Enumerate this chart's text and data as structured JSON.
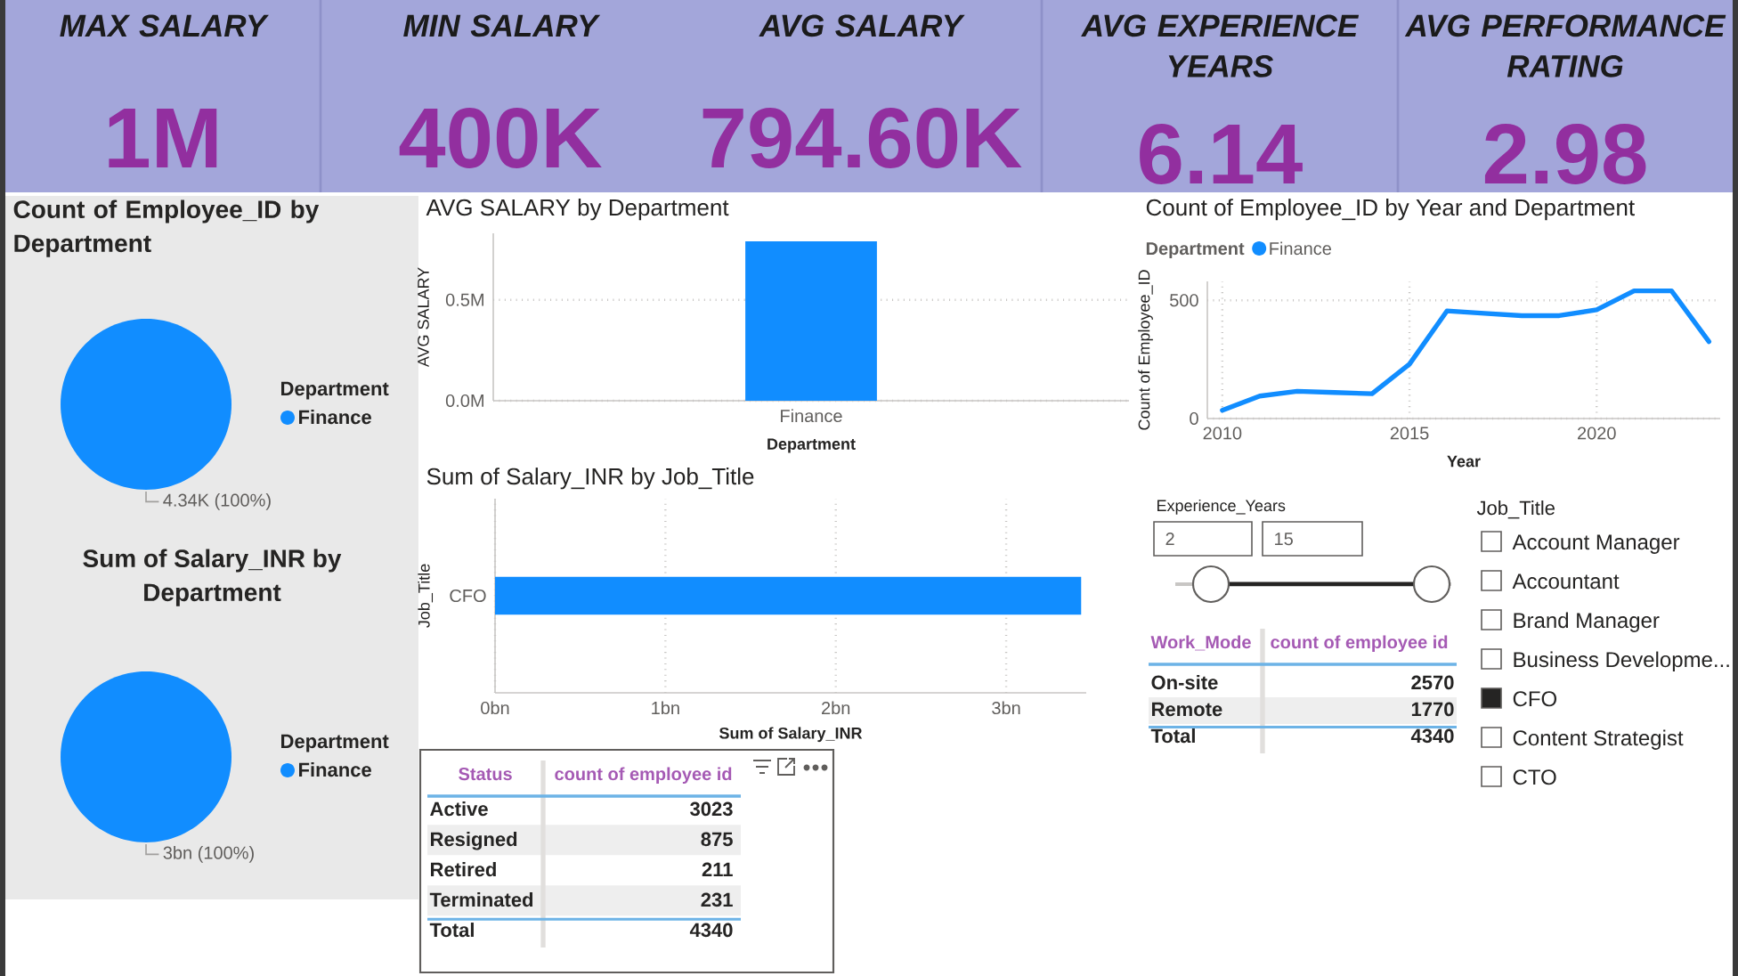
{
  "chart_data": [
    {
      "type": "other",
      "title": "MAX SALARY",
      "annotations": [
        "1M"
      ]
    },
    {
      "type": "other",
      "title": "MIN SALARY",
      "annotations": [
        "400K"
      ]
    },
    {
      "type": "other",
      "title": "AVG SALARY",
      "annotations": [
        "794.60K"
      ]
    },
    {
      "type": "other",
      "title": "AVG EXPERIENCE YEARS",
      "annotations": [
        "6.14"
      ]
    },
    {
      "type": "other",
      "title": "AVG PERFORMANCE RATING",
      "annotations": [
        "2.98"
      ]
    },
    {
      "type": "pie",
      "title": "Count of Employee_ID by Department",
      "legend_title": "Department",
      "legend": "right",
      "categories": [
        "Finance"
      ],
      "values": [
        4340
      ],
      "value_labels": [
        "4.34K (100%)"
      ],
      "colors": [
        "#118dff"
      ]
    },
    {
      "type": "bar",
      "title": "AVG SALARY by Department",
      "xlabel": "Department",
      "ylabel": "AVG SALARY",
      "categories": [
        "Finance"
      ],
      "values": [
        790000
      ],
      "color": "#118dff",
      "ylim": [
        0,
        830000
      ],
      "yticks": [
        {
          "value": 0,
          "label": "0.0M"
        },
        {
          "value": 500000,
          "label": "0.5M"
        }
      ],
      "grid": "y"
    },
    {
      "type": "line",
      "title": "Count of Employee_ID by Year and Department",
      "xlabel": "Year",
      "ylabel": "Count of Employee_ID",
      "legend_title": "Department",
      "legend": "top left",
      "x": [
        2010,
        2011,
        2012,
        2013,
        2014,
        2015,
        2016,
        2017,
        2018,
        2019,
        2020,
        2021,
        2022,
        2023
      ],
      "series": [
        {
          "name": "Finance",
          "color": "#118dff",
          "values": [
            35,
            95,
            115,
            110,
            105,
            230,
            455,
            445,
            435,
            435,
            460,
            540,
            540,
            325
          ]
        }
      ],
      "xlim": [
        2009.6,
        2023.3
      ],
      "ylim": [
        0,
        580
      ],
      "xticks": [
        2010,
        2015,
        2020
      ],
      "yticks": [
        0,
        500
      ],
      "grid": true
    },
    {
      "type": "pie",
      "title": "Sum of Salary_INR by Department",
      "legend_title": "Department",
      "legend": "right",
      "categories": [
        "Finance"
      ],
      "values": [
        3440000000
      ],
      "value_labels": [
        "3bn (100%)"
      ],
      "colors": [
        "#118dff"
      ]
    },
    {
      "type": "bar",
      "orientation": "horizontal",
      "title": "Sum of Salary_INR by Job_Title",
      "xlabel": "Sum of Salary_INR",
      "ylabel": "Job_Title",
      "categories": [
        "CFO"
      ],
      "values": [
        3440000000
      ],
      "color": "#118dff",
      "xlim": [
        0,
        3470000000
      ],
      "xticks": [
        {
          "value": 0,
          "label": "0bn"
        },
        {
          "value": 1000000000,
          "label": "1bn"
        },
        {
          "value": 2000000000,
          "label": "2bn"
        },
        {
          "value": 3000000000,
          "label": "3bn"
        }
      ],
      "grid": "x"
    },
    {
      "type": "other",
      "title": "Experience_Years",
      "annotations": [
        "2",
        "15"
      ]
    },
    {
      "type": "other",
      "title": "Job_Title",
      "categories": [
        "Account Manager",
        "Accountant",
        "Brand Manager",
        "Business Developme...",
        "CFO",
        "Content Strategist",
        "CTO"
      ],
      "colors": [
        "#ffffff",
        "#ffffff",
        "#ffffff",
        "#ffffff",
        "#252423",
        "#ffffff",
        "#ffffff"
      ]
    },
    {
      "type": "other",
      "xlabel": "Work_Mode",
      "ylabel": "count of employee id",
      "categories": [
        "On-site",
        "Remote",
        "Total"
      ],
      "values": [
        2570,
        1770,
        4340
      ],
      "data_labels": true
    },
    {
      "type": "other",
      "xlabel": "Status",
      "ylabel": "count of employee id",
      "categories": [
        "Active",
        "Resigned",
        "Retired",
        "Terminated",
        "Total"
      ],
      "values": [
        3023,
        875,
        211,
        231,
        4340
      ],
      "data_labels": true
    }
  ]
}
